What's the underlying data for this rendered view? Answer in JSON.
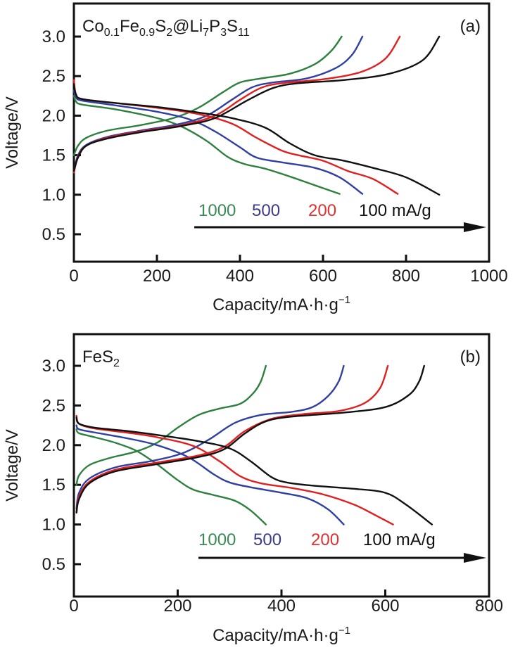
{
  "chart_data": [
    {
      "type": "line",
      "panel_label": "(a)",
      "title": "Co0.1Fe0.9S2@Li7P3S11",
      "title_parts": [
        {
          "t": "Co",
          "sub": false
        },
        {
          "t": "0.1",
          "sub": true
        },
        {
          "t": "Fe",
          "sub": false
        },
        {
          "t": "0.9",
          "sub": true
        },
        {
          "t": "S",
          "sub": false
        },
        {
          "t": "2",
          "sub": true
        },
        {
          "t": "@Li",
          "sub": false
        },
        {
          "t": "7",
          "sub": true
        },
        {
          "t": "P",
          "sub": false
        },
        {
          "t": "3",
          "sub": true
        },
        {
          "t": "S",
          "sub": false
        },
        {
          "t": "11",
          "sub": true
        }
      ],
      "xlabel": "Capacity/mA·h·g",
      "xlabel_sup": "−1",
      "ylabel": "Voltage/V",
      "xlim": [
        0,
        1000
      ],
      "ylim": [
        0.2,
        3.4
      ],
      "xticks": [
        0,
        200,
        400,
        600,
        800,
        1000
      ],
      "yticks": [
        0.5,
        1.0,
        1.5,
        2.0,
        2.5,
        3.0
      ],
      "ytick_labels": [
        "0.5",
        "1.0",
        "1.5",
        "2.0",
        "2.5",
        "3.0"
      ],
      "grid": false,
      "legend_annotation": {
        "labels": [
          {
            "text": "1000",
            "color": "#3a8a55"
          },
          {
            "text": "500",
            "color": "#3d3a8c"
          },
          {
            "text": "200",
            "color": "#e03030"
          },
          {
            "text": "100 mA/g",
            "color": "#111111"
          }
        ],
        "arrow_from_x": 290,
        "arrow_to_x": 1000,
        "arrow_y": 0.6
      },
      "series": [
        {
          "name": "1000 mA/g discharge",
          "color": "#2e8040",
          "points": [
            [
              0,
              2.25
            ],
            [
              5,
              2.18
            ],
            [
              20,
              2.14
            ],
            [
              100,
              2.08
            ],
            [
              200,
              1.97
            ],
            [
              260,
              1.86
            ],
            [
              320,
              1.68
            ],
            [
              370,
              1.48
            ],
            [
              410,
              1.39
            ],
            [
              460,
              1.33
            ],
            [
              520,
              1.23
            ],
            [
              580,
              1.12
            ],
            [
              640,
              1.01
            ]
          ]
        },
        {
          "name": "1000 mA/g charge",
          "color": "#2e8040",
          "points": [
            [
              0,
              1.5
            ],
            [
              10,
              1.62
            ],
            [
              30,
              1.72
            ],
            [
              80,
              1.81
            ],
            [
              160,
              1.88
            ],
            [
              240,
              1.97
            ],
            [
              300,
              2.1
            ],
            [
              360,
              2.3
            ],
            [
              400,
              2.42
            ],
            [
              450,
              2.47
            ],
            [
              520,
              2.53
            ],
            [
              580,
              2.65
            ],
            [
              620,
              2.82
            ],
            [
              645,
              3.0
            ]
          ]
        },
        {
          "name": "500 mA/g discharge",
          "color": "#3040a0",
          "points": [
            [
              0,
              2.32
            ],
            [
              5,
              2.23
            ],
            [
              20,
              2.19
            ],
            [
              100,
              2.13
            ],
            [
              200,
              2.05
            ],
            [
              280,
              1.95
            ],
            [
              340,
              1.8
            ],
            [
              400,
              1.6
            ],
            [
              440,
              1.47
            ],
            [
              500,
              1.41
            ],
            [
              580,
              1.34
            ],
            [
              640,
              1.22
            ],
            [
              695,
              1.01
            ]
          ]
        },
        {
          "name": "500 mA/g charge",
          "color": "#3040a0",
          "points": [
            [
              0,
              1.3
            ],
            [
              10,
              1.5
            ],
            [
              30,
              1.63
            ],
            [
              80,
              1.73
            ],
            [
              160,
              1.81
            ],
            [
              250,
              1.89
            ],
            [
              320,
              2.0
            ],
            [
              380,
              2.2
            ],
            [
              430,
              2.36
            ],
            [
              480,
              2.42
            ],
            [
              560,
              2.47
            ],
            [
              630,
              2.6
            ],
            [
              670,
              2.77
            ],
            [
              695,
              3.0
            ]
          ]
        },
        {
          "name": "200 mA/g discharge",
          "color": "#e02020",
          "points": [
            [
              0,
              2.45
            ],
            [
              5,
              2.27
            ],
            [
              20,
              2.21
            ],
            [
              100,
              2.16
            ],
            [
              200,
              2.1
            ],
            [
              300,
              2.02
            ],
            [
              380,
              1.9
            ],
            [
              440,
              1.72
            ],
            [
              500,
              1.56
            ],
            [
              540,
              1.5
            ],
            [
              600,
              1.43
            ],
            [
              660,
              1.3
            ],
            [
              720,
              1.2
            ],
            [
              780,
              1.01
            ]
          ]
        },
        {
          "name": "200 mA/g charge",
          "color": "#e02020",
          "points": [
            [
              0,
              1.28
            ],
            [
              10,
              1.48
            ],
            [
              30,
              1.62
            ],
            [
              80,
              1.72
            ],
            [
              160,
              1.8
            ],
            [
              260,
              1.88
            ],
            [
              340,
              2.0
            ],
            [
              400,
              2.2
            ],
            [
              450,
              2.35
            ],
            [
              500,
              2.41
            ],
            [
              600,
              2.46
            ],
            [
              690,
              2.55
            ],
            [
              750,
              2.72
            ],
            [
              785,
              3.0
            ]
          ]
        },
        {
          "name": "100 mA/g discharge",
          "color": "#111111",
          "points": [
            [
              0,
              2.4
            ],
            [
              5,
              2.27
            ],
            [
              20,
              2.21
            ],
            [
              100,
              2.16
            ],
            [
              200,
              2.11
            ],
            [
              300,
              2.04
            ],
            [
              380,
              1.97
            ],
            [
              460,
              1.85
            ],
            [
              520,
              1.65
            ],
            [
              580,
              1.5
            ],
            [
              650,
              1.43
            ],
            [
              720,
              1.34
            ],
            [
              800,
              1.22
            ],
            [
              880,
              1.0
            ]
          ]
        },
        {
          "name": "100 mA/g charge",
          "color": "#111111",
          "points": [
            [
              0,
              1.3
            ],
            [
              10,
              1.47
            ],
            [
              30,
              1.62
            ],
            [
              80,
              1.71
            ],
            [
              160,
              1.79
            ],
            [
              260,
              1.87
            ],
            [
              340,
              1.97
            ],
            [
              420,
              2.2
            ],
            [
              480,
              2.35
            ],
            [
              540,
              2.41
            ],
            [
              650,
              2.45
            ],
            [
              760,
              2.53
            ],
            [
              840,
              2.7
            ],
            [
              880,
              3.0
            ]
          ]
        }
      ]
    },
    {
      "type": "line",
      "panel_label": "(b)",
      "title": "FeS2",
      "title_parts": [
        {
          "t": "FeS",
          "sub": false
        },
        {
          "t": "2",
          "sub": true
        }
      ],
      "xlabel": "Capacity/mA·h·g",
      "xlabel_sup": "−1",
      "ylabel": "Voltage/V",
      "xlim": [
        0,
        800
      ],
      "ylim": [
        0.2,
        3.4
      ],
      "xticks": [
        0,
        200,
        400,
        600,
        800
      ],
      "yticks": [
        0.5,
        1.0,
        1.5,
        2.0,
        2.5,
        3.0
      ],
      "ytick_labels": [
        "0.5",
        "1.0",
        "1.5",
        "2.0",
        "2.5",
        "3.0"
      ],
      "grid": false,
      "legend_annotation": {
        "labels": [
          {
            "text": "1000",
            "color": "#3a8a55"
          },
          {
            "text": "500",
            "color": "#3d3a8c"
          },
          {
            "text": "200",
            "color": "#e03030"
          },
          {
            "text": "100 mA/g",
            "color": "#111111"
          }
        ],
        "arrow_from_x": 240,
        "arrow_to_x": 800,
        "arrow_y": 0.6
      },
      "series": [
        {
          "name": "1000 mA/g discharge",
          "color": "#2e8040",
          "points": [
            [
              5,
              2.2
            ],
            [
              10,
              2.15
            ],
            [
              40,
              2.1
            ],
            [
              80,
              2.03
            ],
            [
              120,
              1.93
            ],
            [
              160,
              1.76
            ],
            [
              200,
              1.56
            ],
            [
              230,
              1.44
            ],
            [
              270,
              1.37
            ],
            [
              310,
              1.3
            ],
            [
              340,
              1.18
            ],
            [
              370,
              1.0
            ]
          ]
        },
        {
          "name": "1000 mA/g charge",
          "color": "#2e8040",
          "points": [
            [
              5,
              1.5
            ],
            [
              10,
              1.62
            ],
            [
              30,
              1.75
            ],
            [
              70,
              1.84
            ],
            [
              120,
              1.92
            ],
            [
              160,
              2.03
            ],
            [
              200,
              2.22
            ],
            [
              240,
              2.38
            ],
            [
              280,
              2.46
            ],
            [
              320,
              2.52
            ],
            [
              345,
              2.65
            ],
            [
              360,
              2.8
            ],
            [
              370,
              3.0
            ]
          ]
        },
        {
          "name": "500 mA/g discharge",
          "color": "#3040a0",
          "points": [
            [
              5,
              2.25
            ],
            [
              10,
              2.2
            ],
            [
              40,
              2.16
            ],
            [
              100,
              2.09
            ],
            [
              160,
              2.0
            ],
            [
              220,
              1.85
            ],
            [
              270,
              1.63
            ],
            [
              300,
              1.53
            ],
            [
              340,
              1.47
            ],
            [
              400,
              1.4
            ],
            [
              450,
              1.33
            ],
            [
              490,
              1.19
            ],
            [
              520,
              1.0
            ]
          ]
        },
        {
          "name": "500 mA/g charge",
          "color": "#3040a0",
          "points": [
            [
              5,
              1.2
            ],
            [
              10,
              1.4
            ],
            [
              30,
              1.58
            ],
            [
              80,
              1.72
            ],
            [
              150,
              1.8
            ],
            [
              210,
              1.9
            ],
            [
              260,
              2.07
            ],
            [
              310,
              2.28
            ],
            [
              360,
              2.38
            ],
            [
              420,
              2.42
            ],
            [
              460,
              2.48
            ],
            [
              490,
              2.62
            ],
            [
              510,
              2.8
            ],
            [
              520,
              3.0
            ]
          ]
        },
        {
          "name": "200 mA/g discharge",
          "color": "#e02020",
          "points": [
            [
              5,
              2.37
            ],
            [
              10,
              2.27
            ],
            [
              40,
              2.21
            ],
            [
              100,
              2.16
            ],
            [
              160,
              2.1
            ],
            [
              230,
              1.99
            ],
            [
              280,
              1.8
            ],
            [
              320,
              1.61
            ],
            [
              360,
              1.52
            ],
            [
              420,
              1.46
            ],
            [
              480,
              1.38
            ],
            [
              540,
              1.25
            ],
            [
              580,
              1.12
            ],
            [
              615,
              1.0
            ]
          ]
        },
        {
          "name": "200 mA/g charge",
          "color": "#e02020",
          "points": [
            [
              5,
              1.15
            ],
            [
              10,
              1.35
            ],
            [
              30,
              1.54
            ],
            [
              80,
              1.69
            ],
            [
              160,
              1.78
            ],
            [
              240,
              1.87
            ],
            [
              290,
              1.98
            ],
            [
              330,
              2.18
            ],
            [
              380,
              2.33
            ],
            [
              440,
              2.39
            ],
            [
              510,
              2.43
            ],
            [
              560,
              2.53
            ],
            [
              590,
              2.72
            ],
            [
              605,
              3.0
            ]
          ]
        },
        {
          "name": "100 mA/g discharge",
          "color": "#111111",
          "points": [
            [
              5,
              2.35
            ],
            [
              10,
              2.27
            ],
            [
              40,
              2.22
            ],
            [
              100,
              2.18
            ],
            [
              170,
              2.12
            ],
            [
              240,
              2.05
            ],
            [
              300,
              1.96
            ],
            [
              340,
              1.8
            ],
            [
              380,
              1.6
            ],
            [
              410,
              1.53
            ],
            [
              460,
              1.49
            ],
            [
              540,
              1.45
            ],
            [
              600,
              1.4
            ],
            [
              640,
              1.25
            ],
            [
              690,
              1.0
            ]
          ]
        },
        {
          "name": "100 mA/g charge",
          "color": "#111111",
          "points": [
            [
              5,
              1.15
            ],
            [
              10,
              1.32
            ],
            [
              30,
              1.52
            ],
            [
              80,
              1.67
            ],
            [
              160,
              1.76
            ],
            [
              240,
              1.85
            ],
            [
              290,
              1.95
            ],
            [
              330,
              2.15
            ],
            [
              370,
              2.3
            ],
            [
              420,
              2.36
            ],
            [
              520,
              2.41
            ],
            [
              600,
              2.48
            ],
            [
              645,
              2.63
            ],
            [
              665,
              2.8
            ],
            [
              675,
              3.0
            ]
          ]
        }
      ]
    }
  ]
}
